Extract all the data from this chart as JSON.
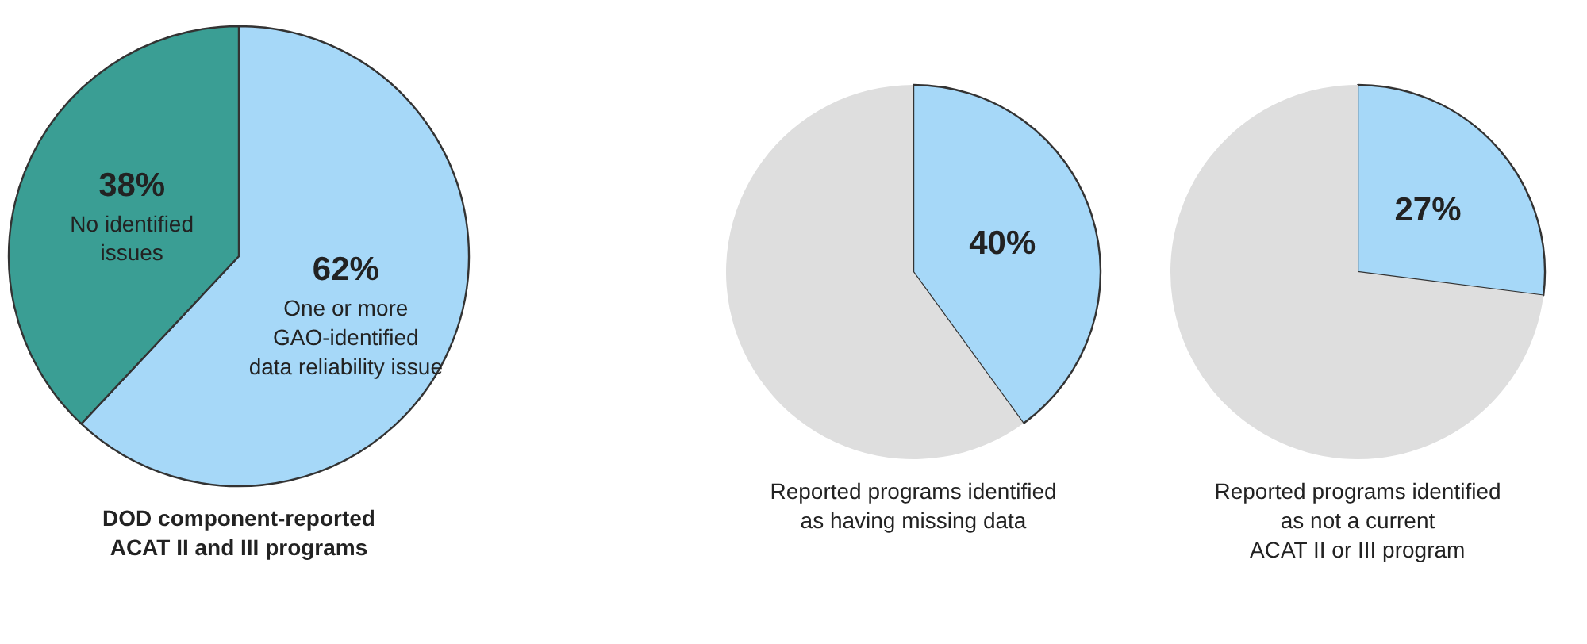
{
  "chart_data": [
    {
      "type": "pie",
      "title": "DOD component-reported\nACAT II and III programs",
      "categories": [
        "One or more\nGAO-identified\ndata reliability issue",
        "No identified\nissues"
      ],
      "values": [
        62,
        38
      ],
      "colors": [
        "#a6d8f8",
        "#3a9e94"
      ],
      "value_labels": [
        "62%",
        "38%"
      ]
    },
    {
      "type": "pie",
      "title": "Reported programs identified\nas having missing data",
      "categories": [
        null,
        null
      ],
      "values": [
        40,
        60
      ],
      "colors": [
        "#a6d8f8",
        "#dedede"
      ],
      "value_labels": [
        "40%",
        null
      ]
    },
    {
      "type": "pie",
      "title": "Reported programs identified\nas not a current\nACAT II or III program",
      "categories": [
        null,
        null
      ],
      "values": [
        27,
        73
      ],
      "colors": [
        "#a6d8f8",
        "#dedede"
      ],
      "value_labels": [
        "27%",
        null
      ]
    }
  ]
}
